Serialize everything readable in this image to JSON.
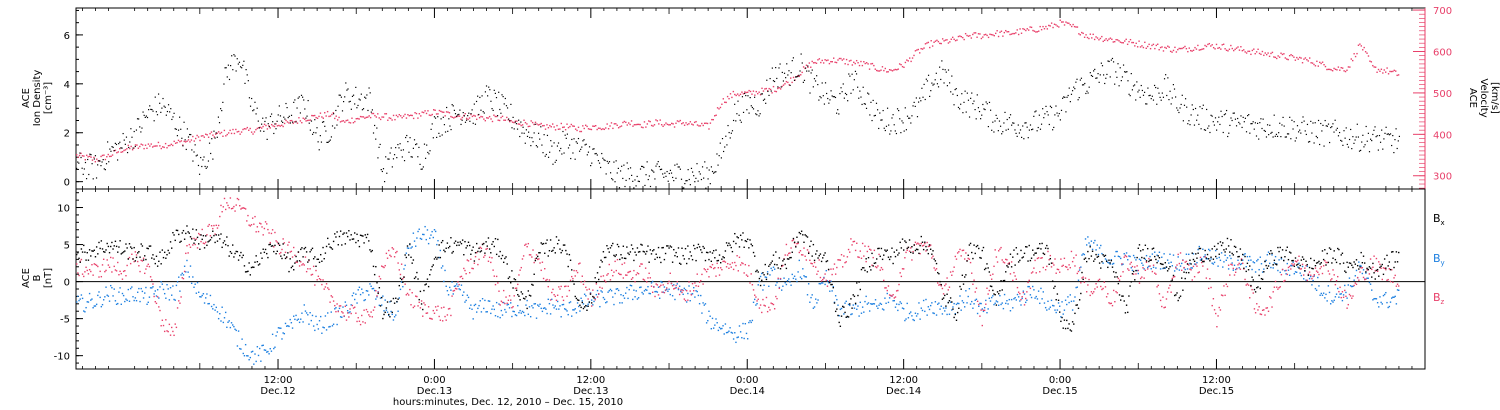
{
  "figure": {
    "xlabel": "hours:minutes, Dec. 12, 2010 – Dec. 15, 2010",
    "x_ticks": [
      {
        "hm": "12:00",
        "day": "Dec.12"
      },
      {
        "hm": "0:00",
        "day": "Dec.13"
      },
      {
        "hm": "12:00",
        "day": "Dec.13"
      },
      {
        "hm": "0:00",
        "day": "Dec.14"
      },
      {
        "hm": "12:00",
        "day": "Dec.14"
      },
      {
        "hm": "0:00",
        "day": "Dec.15"
      },
      {
        "hm": "12:00",
        "day": "Dec.15"
      }
    ]
  },
  "chart_data": [
    {
      "type": "scatter",
      "title": "",
      "ylabel_lines": [
        "ACE",
        "Ion Density",
        "[cm⁻³]"
      ],
      "y2label_lines": [
        "ACE",
        "Velocity",
        "[km/s]"
      ],
      "xlim_hours": [
        -15.5,
        88
      ],
      "ylim": [
        -0.3,
        7.1
      ],
      "y2lim": [
        268,
        705
      ],
      "yticks": [
        0,
        2,
        4,
        6
      ],
      "y2ticks": [
        300,
        400,
        500,
        600,
        700
      ],
      "colors": {
        "density": "#000000",
        "velocity": "#e8406a"
      },
      "series": [
        {
          "key": "density",
          "x_hours": [
            -15.5,
            -14,
            -13,
            -12,
            -11,
            -10,
            -9,
            -8,
            -7,
            -6,
            -5,
            -4,
            -3,
            -2,
            -1,
            0,
            1,
            2,
            3,
            4,
            5,
            6,
            7,
            8,
            9,
            10,
            11,
            12,
            13,
            14,
            15,
            16,
            17,
            18,
            19,
            20,
            21,
            22,
            23,
            24,
            25,
            26,
            27,
            28,
            29,
            30,
            31,
            32,
            33,
            34,
            35,
            36,
            37,
            38,
            39,
            40,
            41,
            42,
            43,
            44,
            45,
            46,
            47,
            48,
            49,
            50,
            51,
            52,
            53,
            54,
            55,
            56,
            57,
            58,
            59,
            60,
            61,
            62,
            63,
            64,
            65,
            66,
            67,
            68,
            69,
            70,
            71,
            72,
            73,
            74,
            75,
            76,
            77,
            78,
            79,
            80,
            81,
            82,
            83,
            84,
            85,
            86
          ],
          "values": [
            0.7,
            0.6,
            1.2,
            1.5,
            2.0,
            2.8,
            3.2,
            2.5,
            1.8,
            0.6,
            1.5,
            4.5,
            5.2,
            3.0,
            2.2,
            2.6,
            2.8,
            3.2,
            1.8,
            2.2,
            3.6,
            3.4,
            3.4,
            0.4,
            1.2,
            1.5,
            1.0,
            2.3,
            2.6,
            2.9,
            2.8,
            3.5,
            3.1,
            2.6,
            2.0,
            1.8,
            1.2,
            1.6,
            1.4,
            1.2,
            0.6,
            0.3,
            0.3,
            0.3,
            0.3,
            0.3,
            0.3,
            0.3,
            0.3,
            1.2,
            2.8,
            3.2,
            3.2,
            4.4,
            4.4,
            4.8,
            4.0,
            3.5,
            3.2,
            4.2,
            3.5,
            2.6,
            2.5,
            2.6,
            3.0,
            4.0,
            4.5,
            3.5,
            3.2,
            3.0,
            2.5,
            2.4,
            2.3,
            2.4,
            2.6,
            2.8,
            3.8,
            4.0,
            4.4,
            4.6,
            4.2,
            3.8,
            3.5,
            3.9,
            3.2,
            2.8,
            2.6,
            2.5,
            2.4,
            2.4,
            2.3,
            2.3,
            2.3,
            2.2,
            2.1,
            2.0,
            2.0,
            1.9,
            1.8,
            1.8,
            1.7,
            1.7
          ]
        },
        {
          "key": "velocity",
          "x_hours": [
            -15.5,
            -14,
            -13,
            -12,
            -11,
            -10,
            -9,
            -8,
            -7,
            -6,
            -5,
            -4,
            -3,
            -2,
            -1,
            0,
            1,
            2,
            3,
            4,
            5,
            6,
            7,
            8,
            9,
            10,
            11,
            12,
            13,
            14,
            15,
            16,
            17,
            18,
            19,
            20,
            21,
            22,
            23,
            24,
            25,
            26,
            27,
            28,
            29,
            30,
            31,
            32,
            33,
            34,
            35,
            36,
            37,
            38,
            39,
            40,
            41,
            42,
            43,
            44,
            45,
            46,
            47,
            48,
            49,
            50,
            51,
            52,
            53,
            54,
            55,
            56,
            57,
            58,
            59,
            60,
            61,
            62,
            63,
            64,
            65,
            66,
            67,
            68,
            69,
            70,
            71,
            72,
            73,
            74,
            75,
            76,
            77,
            78,
            79,
            80,
            81,
            82,
            83,
            84,
            85,
            86
          ],
          "values": [
            350,
            340,
            350,
            365,
            370,
            375,
            375,
            380,
            385,
            395,
            400,
            405,
            410,
            410,
            420,
            425,
            430,
            440,
            445,
            450,
            430,
            440,
            445,
            445,
            440,
            445,
            450,
            455,
            450,
            445,
            445,
            440,
            440,
            430,
            430,
            420,
            420,
            420,
            415,
            420,
            420,
            425,
            430,
            425,
            430,
            425,
            430,
            425,
            420,
            480,
            500,
            500,
            505,
            510,
            525,
            550,
            575,
            580,
            580,
            575,
            570,
            560,
            555,
            570,
            600,
            620,
            625,
            630,
            640,
            640,
            645,
            645,
            650,
            655,
            660,
            670,
            660,
            640,
            635,
            630,
            625,
            620,
            615,
            610,
            605,
            610,
            615,
            615,
            610,
            605,
            600,
            595,
            590,
            585,
            580,
            570,
            560,
            560,
            620,
            560,
            555,
            545
          ]
        }
      ]
    },
    {
      "type": "scatter",
      "title": "",
      "ylabel_lines": [
        "ACE",
        "B",
        "[nT]"
      ],
      "xlim_hours": [
        -15.5,
        88
      ],
      "ylim": [
        -11.8,
        12.5
      ],
      "yticks": [
        -10,
        -5,
        0,
        5,
        10
      ],
      "zero_line": true,
      "legend_position": "right",
      "series": [
        {
          "name": "Bx",
          "label_main": "B",
          "label_sub": "x",
          "color": "#000000",
          "x_hours": [
            -15.5,
            -14,
            -13,
            -12,
            -11,
            -10,
            -9,
            -8,
            -7,
            -6,
            -5,
            -4,
            -3,
            -2,
            -1,
            0,
            1,
            2,
            3,
            4,
            5,
            6,
            7,
            8,
            9,
            10,
            11,
            12,
            13,
            14,
            15,
            16,
            17,
            18,
            19,
            20,
            21,
            22,
            23,
            24,
            25,
            26,
            27,
            28,
            29,
            30,
            31,
            32,
            33,
            34,
            35,
            36,
            37,
            38,
            39,
            40,
            41,
            42,
            43,
            44,
            45,
            46,
            47,
            48,
            49,
            50,
            51,
            52,
            53,
            54,
            55,
            56,
            57,
            58,
            59,
            60,
            61,
            62,
            63,
            64,
            65,
            66,
            67,
            68,
            69,
            70,
            71,
            72,
            73,
            74,
            75,
            76,
            77,
            78,
            79,
            80,
            81,
            82,
            83,
            84,
            85,
            86
          ],
          "values": [
            3.5,
            4.5,
            5.0,
            4.5,
            4.0,
            4.0,
            3.0,
            6.0,
            7.0,
            5.5,
            6.0,
            5.0,
            3.0,
            2.0,
            4.0,
            5.0,
            2.0,
            4.0,
            3.0,
            5.5,
            6.0,
            6.0,
            5.5,
            -4.0,
            -3.0,
            5.0,
            -3.0,
            4.0,
            5.0,
            5.0,
            4.0,
            5.0,
            4.5,
            0.0,
            -3.0,
            4.0,
            5.0,
            5.0,
            -3.0,
            -2.5,
            4.5,
            4.0,
            4.0,
            4.0,
            3.5,
            4.0,
            3.5,
            4.0,
            4.0,
            3.5,
            5.5,
            6.0,
            0.5,
            3.0,
            2.5,
            7.0,
            4.0,
            3.0,
            -5.0,
            -3.0,
            2.0,
            4.0,
            3.5,
            5.0,
            5.0,
            5.0,
            -2.0,
            -4.0,
            4.5,
            4.0,
            -3.0,
            3.0,
            4.0,
            4.0,
            4.5,
            -5.0,
            -6.0,
            4.0,
            3.0,
            2.0,
            -4.0,
            4.0,
            4.0,
            3.0,
            -2.0,
            3.0,
            4.0,
            4.0,
            5.0,
            3.0,
            -1.0,
            3.0,
            4.0,
            3.0,
            2.0,
            3.0,
            4.0,
            2.0,
            3.0,
            1.5,
            2.5,
            3.5
          ]
        },
        {
          "name": "By",
          "label_main": "B",
          "label_sub": "y",
          "color": "#1c7fe0",
          "x_hours": [
            -15.5,
            -14,
            -13,
            -12,
            -11,
            -10,
            -9,
            -8,
            -7,
            -6,
            -5,
            -4,
            -3,
            -2,
            -1,
            0,
            1,
            2,
            3,
            4,
            5,
            6,
            7,
            8,
            9,
            10,
            11,
            12,
            13,
            14,
            15,
            16,
            17,
            18,
            19,
            20,
            21,
            22,
            23,
            24,
            25,
            26,
            27,
            28,
            29,
            30,
            31,
            32,
            33,
            34,
            35,
            36,
            37,
            38,
            39,
            40,
            41,
            42,
            43,
            44,
            45,
            46,
            47,
            48,
            49,
            50,
            51,
            52,
            53,
            54,
            55,
            56,
            57,
            58,
            59,
            60,
            61,
            62,
            63,
            64,
            65,
            66,
            67,
            68,
            69,
            70,
            71,
            72,
            73,
            74,
            75,
            76,
            77,
            78,
            79,
            80,
            81,
            82,
            83,
            84,
            85,
            86
          ],
          "values": [
            -3.0,
            -2.5,
            -1.5,
            -2.0,
            -1.5,
            -2.0,
            -1.0,
            -1.5,
            2.0,
            -2.0,
            -3.0,
            -5.0,
            -8.0,
            -10.0,
            -9.5,
            -7.0,
            -6.0,
            -4.0,
            -6.0,
            -5.0,
            -4.0,
            -2.0,
            -1.0,
            -3.0,
            -4.5,
            5.0,
            6.5,
            6.0,
            -1.0,
            -1.5,
            -4.0,
            -3.0,
            -4.0,
            -3.5,
            -3.5,
            -4.0,
            -3.0,
            -4.0,
            -3.0,
            -2.5,
            -2.0,
            -2.0,
            -1.5,
            -1.0,
            -1.0,
            -1.0,
            -1.5,
            -1.5,
            -5.0,
            -6.0,
            -7.0,
            -6.5,
            0.0,
            1.0,
            -1.0,
            2.0,
            -3.0,
            0.5,
            -3.5,
            -4.0,
            -3.0,
            -3.5,
            -2.0,
            -4.0,
            -4.0,
            -3.0,
            -3.5,
            -3.0,
            -2.0,
            -4.0,
            -2.5,
            -3.0,
            -2.0,
            -1.0,
            -3.0,
            -3.5,
            -2.5,
            5.5,
            4.0,
            3.0,
            3.5,
            2.0,
            3.0,
            3.0,
            2.5,
            3.0,
            4.0,
            3.0,
            2.5,
            3.0,
            2.0,
            3.0,
            2.0,
            2.0,
            1.0,
            -1.0,
            -2.0,
            -1.0,
            2.0,
            -2.0,
            -2.5,
            -2.0
          ]
        },
        {
          "name": "Bz",
          "label_main": "B",
          "label_sub": "z",
          "color": "#e8406a",
          "x_hours": [
            -15.5,
            -14,
            -13,
            -12,
            -11,
            -10,
            -9,
            -8,
            -7,
            -6,
            -5,
            -4,
            -3,
            -2,
            -1,
            0,
            1,
            2,
            3,
            4,
            5,
            6,
            7,
            8,
            9,
            10,
            11,
            12,
            13,
            14,
            15,
            16,
            17,
            18,
            19,
            20,
            21,
            22,
            23,
            24,
            25,
            26,
            27,
            28,
            29,
            30,
            31,
            32,
            33,
            34,
            35,
            36,
            37,
            38,
            39,
            40,
            41,
            42,
            43,
            44,
            45,
            46,
            47,
            48,
            49,
            50,
            51,
            52,
            53,
            54,
            55,
            56,
            57,
            58,
            59,
            60,
            61,
            62,
            63,
            64,
            65,
            66,
            67,
            68,
            69,
            70,
            71,
            72,
            73,
            74,
            75,
            76,
            77,
            78,
            79,
            80,
            81,
            82,
            83,
            84,
            85,
            86
          ],
          "values": [
            2.0,
            1.5,
            2.5,
            1.5,
            3.0,
            2.0,
            -5.0,
            -7.5,
            5.0,
            6.0,
            7.0,
            11.0,
            10.0,
            8.0,
            7.0,
            5.0,
            4.0,
            3.0,
            0.0,
            -2.0,
            -4.0,
            -4.5,
            -5.0,
            2.5,
            4.0,
            -2.0,
            -3.5,
            -4.0,
            -4.5,
            1.0,
            3.0,
            4.5,
            -2.0,
            -3.0,
            5.0,
            3.0,
            -2.0,
            -1.5,
            2.0,
            -2.5,
            1.0,
            2.0,
            1.0,
            1.5,
            -1.5,
            0.5,
            -2.0,
            0.0,
            1.5,
            2.0,
            3.0,
            1.5,
            -3.0,
            -3.0,
            4.5,
            5.0,
            3.0,
            0.5,
            2.0,
            5.0,
            4.0,
            3.0,
            -3.0,
            3.0,
            5.0,
            4.5,
            -2.0,
            3.5,
            3.0,
            -5.0,
            4.0,
            3.0,
            -3.0,
            2.0,
            3.0,
            2.0,
            3.5,
            -1.0,
            0.0,
            -2.5,
            3.0,
            1.0,
            2.5,
            -4.0,
            3.5,
            1.0,
            3.0,
            -5.0,
            2.0,
            2.0,
            -4.0,
            -3.0,
            1.0,
            3.0,
            1.0,
            2.5,
            1.0,
            -3.0,
            1.0,
            2.5,
            1.0,
            0.5
          ]
        }
      ]
    }
  ]
}
